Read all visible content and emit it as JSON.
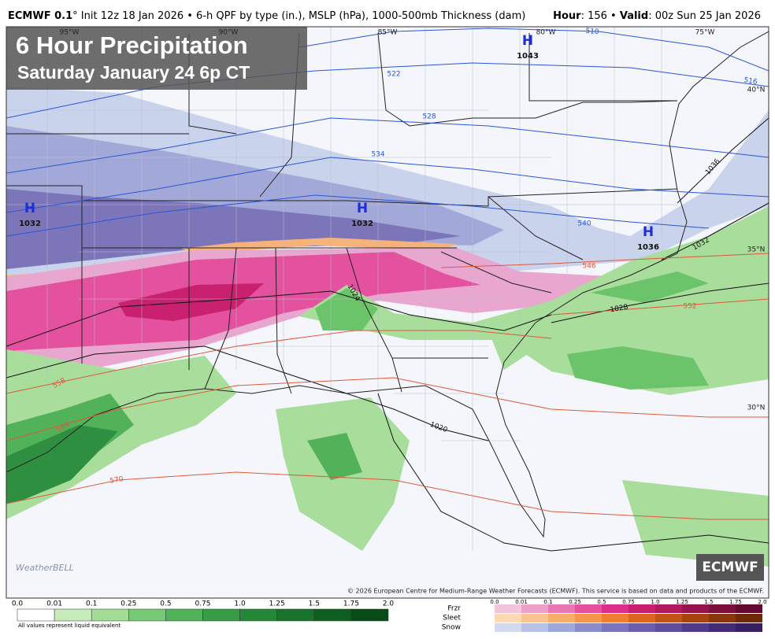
{
  "header": {
    "left": [
      "ECMWF 0.1",
      "° Init 12z 18 Jan 2026 • 6-h QPF by type (in.), MSLP (hPa), 1000-500mb Thickness (dam)"
    ],
    "right": [
      "Hour",
      ": 156 • ",
      "Valid",
      ": 00z Sun 25 Jan 2026"
    ]
  },
  "title_box": {
    "title": "6 Hour Precipitation",
    "subtitle": "Saturday January 24 6p CT"
  },
  "map": {
    "lon_labels": [
      "95°W",
      "90°W",
      "85°W",
      "80°W",
      "75°W"
    ],
    "lat_labels": [
      "40°N",
      "35°N",
      "30°N"
    ],
    "highs": [
      {
        "symbol": "H",
        "pressure": "1043"
      },
      {
        "symbol": "H",
        "pressure": "1032"
      },
      {
        "symbol": "H",
        "pressure": "1032"
      },
      {
        "symbol": "H",
        "pressure": "1036"
      }
    ],
    "isobar_labels": [
      "1036",
      "1032",
      "1028",
      "1024",
      "1020"
    ],
    "thickness_labels": [
      "510",
      "516",
      "522",
      "528",
      "534",
      "540",
      "546",
      "552",
      "558",
      "564",
      "570"
    ]
  },
  "branding": {
    "logo": "ECMWF",
    "weatherbell": "WeatherBELL",
    "copyright": "© 2026 European Centre for Medium-Range Weather Forecasts (ECMWF). This service is based on data and products of the ECMWF."
  },
  "legend": {
    "rain": {
      "ticks": [
        "0.0",
        "0.01",
        "0.1",
        "0.25",
        "0.5",
        "0.75",
        "1.0",
        "1.25",
        "1.5",
        "1.75",
        "2.0"
      ],
      "colors": [
        "#ffffff",
        "#c8ebbc",
        "#a3dc95",
        "#78c977",
        "#52b25a",
        "#379c45",
        "#258838",
        "#19732d",
        "#0f5f23",
        "#084b19"
      ],
      "note": "All values represent liquid equivalent"
    },
    "mixed": {
      "ticks": [
        "0.0",
        "0.01",
        "0.1",
        "0.25",
        "0.5",
        "0.75",
        "1.0",
        "1.25",
        "1.5",
        "1.75",
        "2.0"
      ],
      "rows": [
        {
          "name": "Frzr",
          "colors": [
            "#f2c4dc",
            "#ec9fc8",
            "#e678b4",
            "#e3519f",
            "#dc2f8c",
            "#c91f73",
            "#b0195f",
            "#96144e",
            "#7c0f3e",
            "#640a30"
          ]
        },
        {
          "name": "Sleet",
          "colors": [
            "#fbd9b4",
            "#f9c490",
            "#f7ae6d",
            "#f4964c",
            "#ee7d2f",
            "#dc6520",
            "#c25417",
            "#a64410",
            "#8a360b",
            "#6e2a07"
          ]
        },
        {
          "name": "Snow",
          "colors": [
            "#d3daf0",
            "#b8c2e6",
            "#9ea8d9",
            "#8a8ccb",
            "#7a74bc",
            "#6b5fad",
            "#5e4c9d",
            "#503b8a",
            "#432c76",
            "#361f62"
          ]
        }
      ]
    }
  }
}
